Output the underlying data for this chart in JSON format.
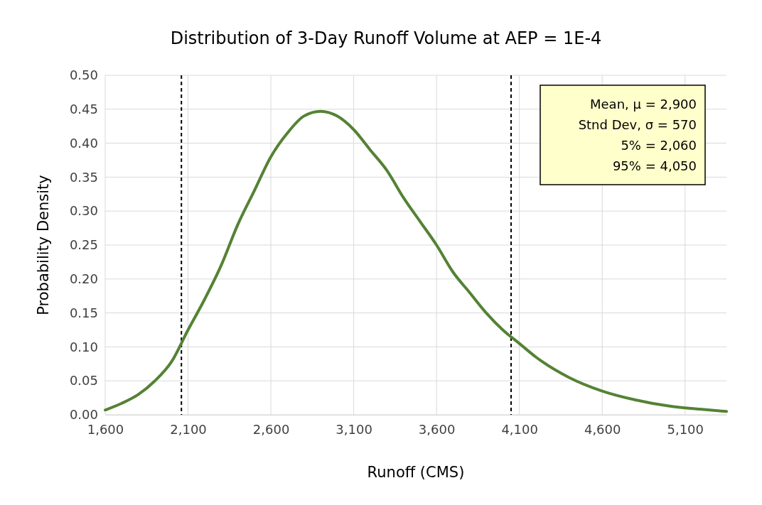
{
  "chart_data": {
    "type": "line",
    "title": "Distribution of 3-Day Runoff Volume at AEP = 1E-4",
    "xlabel": "Runoff (CMS)",
    "ylabel": "Probability Density",
    "x": [
      1600,
      1700,
      1800,
      1900,
      2000,
      2100,
      2200,
      2300,
      2400,
      2500,
      2600,
      2700,
      2800,
      2900,
      3000,
      3100,
      3200,
      3300,
      3400,
      3500,
      3600,
      3700,
      3800,
      3900,
      4000,
      4100,
      4200,
      4400,
      4600,
      4800,
      5000,
      5200,
      5350
    ],
    "series": [
      {
        "color": "#548235",
        "values": [
          0.007,
          0.017,
          0.03,
          0.05,
          0.078,
          0.125,
          0.17,
          0.22,
          0.28,
          0.33,
          0.38,
          0.415,
          0.44,
          0.447,
          0.44,
          0.42,
          0.39,
          0.36,
          0.32,
          0.285,
          0.25,
          0.21,
          0.18,
          0.15,
          0.125,
          0.105,
          0.085,
          0.055,
          0.035,
          0.022,
          0.013,
          0.008,
          0.005
        ]
      }
    ],
    "xlim": [
      1600,
      5350
    ],
    "xticks": [
      {
        "value": 1600,
        "label": "1,600"
      },
      {
        "value": 2100,
        "label": "2,100"
      },
      {
        "value": 2600,
        "label": "2,600"
      },
      {
        "value": 3100,
        "label": "3,100"
      },
      {
        "value": 3600,
        "label": "3,600"
      },
      {
        "value": 4100,
        "label": "4,100"
      },
      {
        "value": 4600,
        "label": "4,600"
      },
      {
        "value": 5100,
        "label": "5,100"
      }
    ],
    "ylim": [
      0,
      0.5
    ],
    "yticks": [
      {
        "value": 0,
        "label": "0.00"
      },
      {
        "value": 0.05,
        "label": "0.05"
      },
      {
        "value": 0.1,
        "label": "0.10"
      },
      {
        "value": 0.15,
        "label": "0.15"
      },
      {
        "value": 0.2,
        "label": "0.20"
      },
      {
        "value": 0.25,
        "label": "0.25"
      },
      {
        "value": 0.3,
        "label": "0.30"
      },
      {
        "value": 0.35,
        "label": "0.35"
      },
      {
        "value": 0.4,
        "label": "0.40"
      },
      {
        "value": 0.45,
        "label": "0.45"
      },
      {
        "value": 0.5,
        "label": "0.50"
      }
    ],
    "grid": true,
    "marker": "none",
    "line_style": "solid",
    "ref_lines": [
      {
        "axis": "x",
        "value": 2060,
        "color": "#000000",
        "line_style": "dashed"
      },
      {
        "axis": "x",
        "value": 4050,
        "color": "#000000",
        "line_style": "dashed"
      }
    ],
    "annotations": [
      "Mean, μ = 2,900",
      "Stnd Dev, σ = 570",
      "5% = 2,060",
      "95% = 4,050"
    ]
  }
}
